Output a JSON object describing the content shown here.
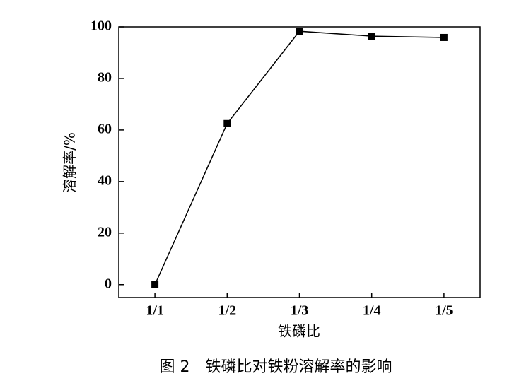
{
  "chart_data": {
    "type": "line",
    "title": "图 2　铁磷比对铁粉溶解率的影响",
    "x_label": "铁磷比",
    "y_label": "溶解率/%",
    "categories": [
      "1/1",
      "1/2",
      "1/3",
      "1/4",
      "1/5"
    ],
    "values": [
      0,
      62.5,
      98.3,
      96.4,
      95.9
    ],
    "color": "#000000",
    "ylim": [
      -5,
      100
    ],
    "yticks": [
      0,
      20,
      40,
      60,
      80,
      100
    ]
  }
}
